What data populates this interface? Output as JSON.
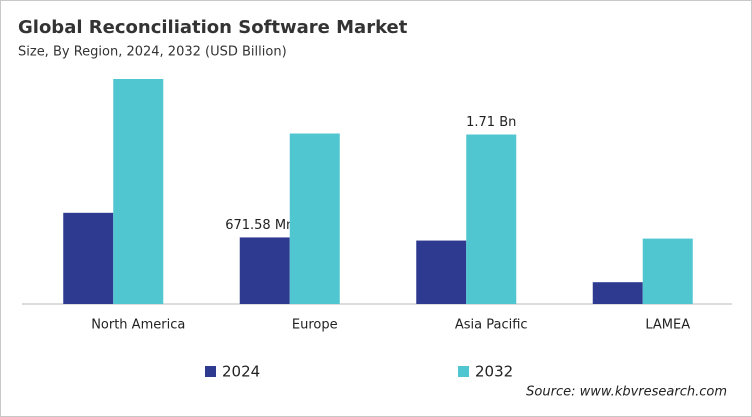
{
  "chart_data": {
    "type": "bar",
    "title": "Global Reconciliation Software Market",
    "subtitle": "Size, By Region, 2024, 2032 (USD Billion)",
    "source": "Source: www.kbvresearch.com",
    "categories": [
      "North America",
      "Europe",
      "Asia Pacific",
      "LAMEA"
    ],
    "series": [
      {
        "name": "2024",
        "color": "#2e3a8f",
        "values": [
          0.92,
          0.67158,
          0.64,
          0.22
        ],
        "value_labels": [
          null,
          "671.58 Mn",
          null,
          null
        ]
      },
      {
        "name": "2032",
        "color": "#4fc6d0",
        "values": [
          2.27,
          1.72,
          1.71,
          0.66
        ],
        "value_labels": [
          null,
          null,
          "1.71 Bn",
          null
        ]
      }
    ]
  }
}
